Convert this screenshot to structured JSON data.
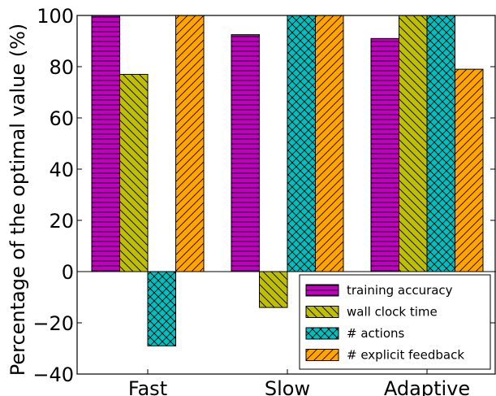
{
  "chart_data": {
    "type": "bar",
    "categories": [
      "Fast",
      "Slow",
      "Adaptive"
    ],
    "ylabel": "Percentage of the optimal value (%)",
    "xlabel": "",
    "ylim": [
      -40,
      100
    ],
    "yticks": [
      -40,
      -20,
      0,
      20,
      40,
      60,
      80,
      100
    ],
    "grid": false,
    "legend_position": "lower-right",
    "series": [
      {
        "name": "training accuracy",
        "color": "#bf00bf",
        "hatch": "horizontal",
        "values": [
          100,
          92.5,
          91
        ]
      },
      {
        "name": "wall clock time",
        "color": "#bfbf00",
        "hatch": "backslash",
        "values": [
          77,
          -14,
          100
        ]
      },
      {
        "name": "# actions",
        "color": "#00bfbf",
        "hatch": "crosshatch",
        "values": [
          -29,
          100,
          100
        ]
      },
      {
        "name": "# explicit feedback",
        "color": "#ffa500",
        "hatch": "slash",
        "values": [
          100,
          100,
          79
        ]
      }
    ]
  }
}
